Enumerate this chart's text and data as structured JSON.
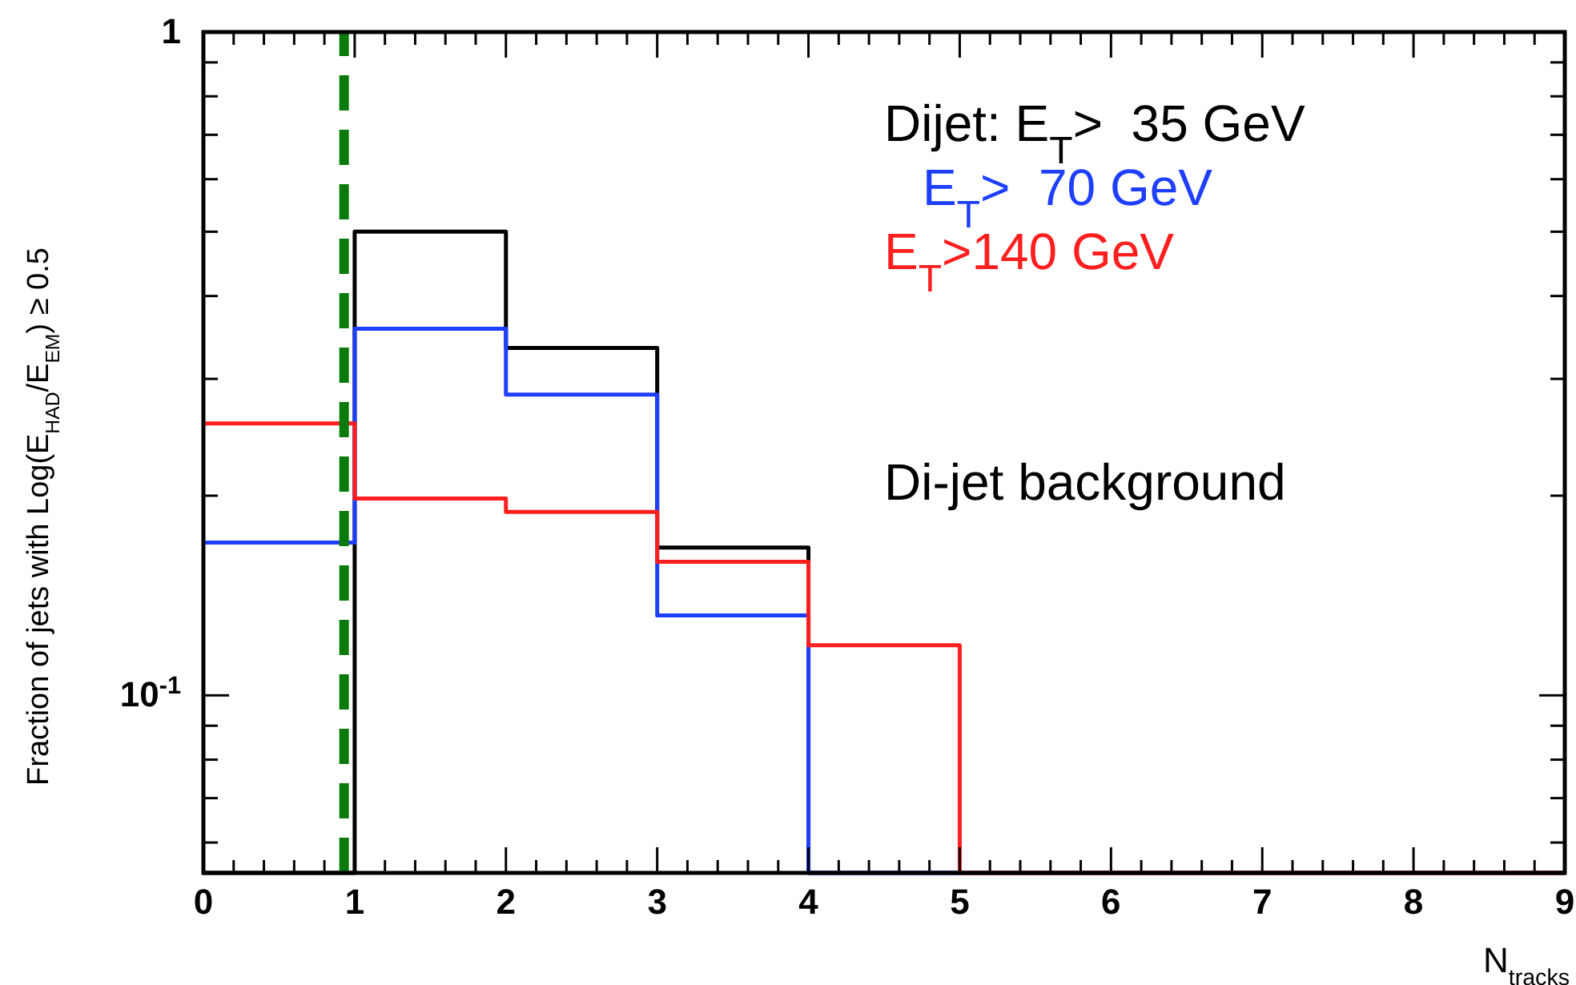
{
  "chart_data": {
    "type": "histogram",
    "xlabel": "N$_{tracks}$",
    "ylabel": "Fraction of jets with Log(E$_{HAD}$/E$_{EM}$) ≥ 0.5",
    "bins": [
      0,
      1,
      2,
      3,
      4,
      5,
      6,
      7,
      8,
      9
    ],
    "series": [
      {
        "name": "Dijet: E$_{T}$>  35 GeV",
        "color": "#000000",
        "values": [
          null,
          0.5,
          0.334,
          0.167,
          null,
          null,
          null,
          null,
          null
        ]
      },
      {
        "name": "E$_{T}$>  70 GeV",
        "color": "#1f3fff",
        "values": [
          0.17,
          0.357,
          0.284,
          0.132,
          null,
          null,
          null,
          null,
          null
        ]
      },
      {
        "name": "E$_{T}$>140 GeV",
        "color": "#ff1f1f",
        "values": [
          0.257,
          0.198,
          0.189,
          0.159,
          0.119,
          null,
          null,
          null,
          null
        ]
      }
    ],
    "annotations": [
      "Di-jet background"
    ],
    "ref_lines": [
      {
        "axis": "x",
        "value": 0.93,
        "color": "#0a7a0a",
        "line_style": "dashed"
      }
    ],
    "log": "y",
    "legend": "top right",
    "grid": false,
    "xlim": [
      0,
      9
    ],
    "ylim": [
      0.054,
      1
    ],
    "xticks": [
      0,
      {
        "value": 0.2,
        "label": null
      },
      {
        "value": 0.4,
        "label": null
      },
      {
        "value": 0.6,
        "label": null
      },
      {
        "value": 0.8,
        "label": null
      },
      1,
      {
        "value": 1.2,
        "label": null
      },
      {
        "value": 1.4,
        "label": null
      },
      {
        "value": 1.6,
        "label": null
      },
      {
        "value": 1.8,
        "label": null
      },
      2,
      {
        "value": 2.2,
        "label": null
      },
      {
        "value": 2.4,
        "label": null
      },
      {
        "value": 2.6,
        "label": null
      },
      {
        "value": 2.8,
        "label": null
      },
      3,
      {
        "value": 3.2,
        "label": null
      },
      {
        "value": 3.4,
        "label": null
      },
      {
        "value": 3.6,
        "label": null
      },
      {
        "value": 3.8,
        "label": null
      },
      4,
      {
        "value": 4.2,
        "label": null
      },
      {
        "value": 4.4,
        "label": null
      },
      {
        "value": 4.6,
        "label": null
      },
      {
        "value": 4.8,
        "label": null
      },
      5,
      {
        "value": 5.2,
        "label": null
      },
      {
        "value": 5.4,
        "label": null
      },
      {
        "value": 5.6,
        "label": null
      },
      {
        "value": 5.8,
        "label": null
      },
      6,
      {
        "value": 6.2,
        "label": null
      },
      {
        "value": 6.4,
        "label": null
      },
      {
        "value": 6.6,
        "label": null
      },
      {
        "value": 6.8,
        "label": null
      },
      7,
      {
        "value": 7.2,
        "label": null
      },
      {
        "value": 7.4,
        "label": null
      },
      {
        "value": 7.6,
        "label": null
      },
      {
        "value": 7.8,
        "label": null
      },
      8,
      {
        "value": 8.2,
        "label": null
      },
      {
        "value": 8.4,
        "label": null
      },
      {
        "value": 8.6,
        "label": null
      },
      {
        "value": 8.8,
        "label": null
      },
      9
    ],
    "yticks": [
      {
        "value": 0.06,
        "label": null
      },
      {
        "value": 0.07,
        "label": null
      },
      {
        "value": 0.08,
        "label": null
      },
      {
        "value": 0.09,
        "label": null
      },
      {
        "value": 0.1,
        "label": "10$^{-1}$"
      },
      {
        "value": 0.2,
        "label": null
      },
      {
        "value": 0.3,
        "label": null
      },
      {
        "value": 0.4,
        "label": null
      },
      {
        "value": 0.5,
        "label": null
      },
      {
        "value": 0.6,
        "label": null
      },
      {
        "value": 0.7,
        "label": null
      },
      {
        "value": 0.8,
        "label": null
      },
      {
        "value": 0.9,
        "label": null
      },
      1
    ]
  }
}
